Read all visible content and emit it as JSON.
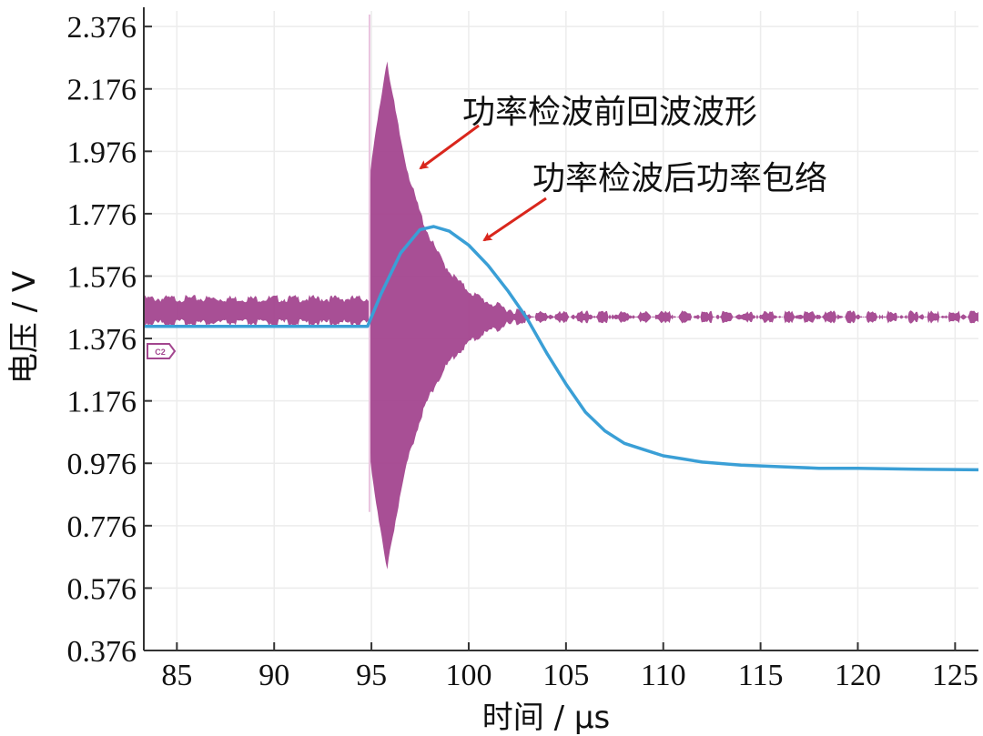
{
  "chart_data": {
    "type": "line",
    "xlabel": "时间 / μs",
    "ylabel": "电压 / V",
    "xlim": [
      83.3,
      126.2
    ],
    "ylim": [
      0.376,
      2.426
    ],
    "xticks": [
      85,
      90,
      95,
      100,
      105,
      110,
      115,
      120,
      125
    ],
    "xtick_labels": [
      "85",
      "90",
      "95",
      "100",
      "105",
      "110",
      "115",
      "120",
      "125"
    ],
    "yticks": [
      0.376,
      0.576,
      0.776,
      0.976,
      1.176,
      1.376,
      1.576,
      1.776,
      1.976,
      2.176,
      2.376
    ],
    "ytick_labels": [
      "0.376",
      "0.576",
      "0.776",
      "0.976",
      "1.176",
      "1.376",
      "1.576",
      "1.776",
      "1.976",
      "2.176",
      "2.376"
    ],
    "grid": true,
    "series": [
      {
        "name": "功率检波前回波波形",
        "style": "oscillating-band",
        "color": "#a3468f",
        "center": 1.465,
        "baseline_half_width": 0.045,
        "pulse_start": 94.9,
        "pulse_peak_time": 95.8,
        "upper_peak": 2.28,
        "lower_trough": 0.62,
        "decay_end": 104.0,
        "tail_center": 1.445,
        "tail_half_width": 0.015
      },
      {
        "name": "功率检波后功率包络",
        "style": "line",
        "color": "#3a9fd6",
        "x": [
          83.3,
          94.8,
          95.5,
          96.5,
          97.5,
          98.2,
          99.0,
          100.0,
          101.0,
          102.0,
          103.0,
          104.0,
          105.0,
          106.0,
          107.0,
          108.0,
          109.0,
          110.0,
          111.0,
          112.0,
          114.0,
          116.0,
          118.0,
          120.0,
          123.0,
          126.2
        ],
        "y": [
          1.415,
          1.415,
          1.52,
          1.65,
          1.725,
          1.735,
          1.72,
          1.675,
          1.61,
          1.53,
          1.44,
          1.33,
          1.23,
          1.14,
          1.08,
          1.04,
          1.02,
          1.0,
          0.99,
          0.98,
          0.97,
          0.965,
          0.96,
          0.96,
          0.957,
          0.955
        ]
      }
    ],
    "annotations": [
      {
        "text": "功率检波前回波波形",
        "arrow_to_series": 0
      },
      {
        "text": "功率检波后功率包络",
        "arrow_to_series": 1
      }
    ],
    "marker_label": "C2",
    "colors": {
      "grid": "#ececec",
      "axis": "#333333",
      "arrow": "#d9261c",
      "marker": "#a3468f"
    }
  }
}
